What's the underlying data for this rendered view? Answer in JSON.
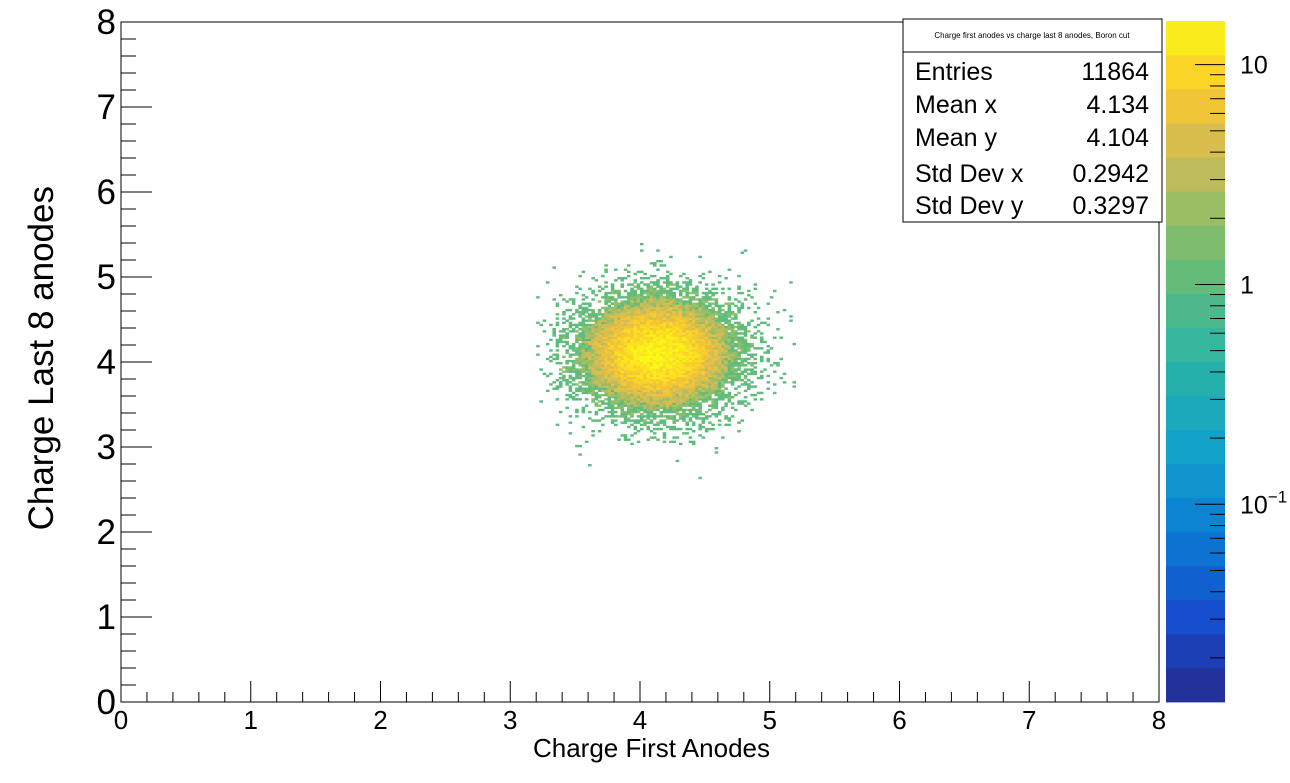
{
  "chart_data": {
    "type": "heatmap",
    "title": "Charge first anodes vs charge last 8 anodes, Boron cut",
    "xlabel": "Charge First Anodes",
    "ylabel": "Charge Last 8 anodes",
    "xlim": [
      0,
      8
    ],
    "ylim": [
      0,
      8
    ],
    "x_ticks": [
      "0",
      "1",
      "2",
      "3",
      "4",
      "5",
      "6",
      "7",
      "8"
    ],
    "y_ticks": [
      "0",
      "1",
      "2",
      "3",
      "4",
      "5",
      "6",
      "7",
      "8"
    ],
    "z_scale": "log",
    "z_range": [
      0.0126,
      15.8
    ],
    "z_ticks": [
      {
        "value": 10,
        "label": "10"
      },
      {
        "value": 1,
        "label": "1"
      },
      {
        "value": 0.1,
        "label": "10",
        "exponent": "−1"
      }
    ],
    "palette": "kViridis",
    "cluster": {
      "mean_x": 4.134,
      "mean_y": 4.104,
      "std_x": 0.2942,
      "std_y": 0.3297,
      "entries": 11864,
      "peak_count": 15
    },
    "stats": {
      "title": "Charge first anodes vs charge last 8 anodes, Boron cut",
      "rows": [
        {
          "label": "Entries",
          "value": "11864"
        },
        {
          "label": "Mean x",
          "value": "4.134"
        },
        {
          "label": "Mean y",
          "value": "4.104"
        },
        {
          "label": "Std Dev x",
          "value": "0.2942"
        },
        {
          "label": "Std Dev y",
          "value": "0.3297"
        }
      ]
    }
  }
}
